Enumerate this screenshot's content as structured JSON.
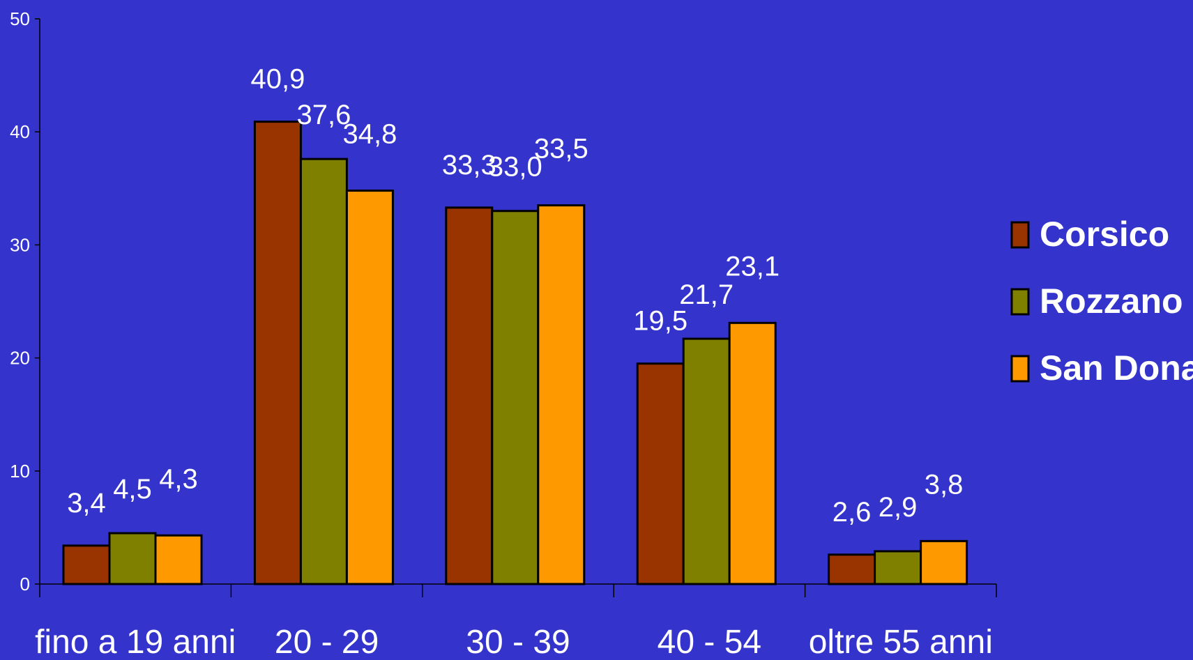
{
  "colors": {
    "background": "#3434cc",
    "axis": "#000000",
    "text": "#ffffff"
  },
  "chart_data": {
    "type": "bar",
    "categories": [
      "fino a 19 anni",
      "20 - 29",
      "30 - 39",
      "40 - 54",
      "oltre 55 anni"
    ],
    "series": [
      {
        "name": "Corsico",
        "color": "#993300",
        "values": [
          3.4,
          40.9,
          33.3,
          19.5,
          2.6
        ],
        "labels": [
          "3,4",
          "40,9",
          "33,3",
          "19,5",
          "2,6"
        ]
      },
      {
        "name": "Rozzano",
        "color": "#808000",
        "values": [
          4.5,
          37.6,
          33.0,
          21.7,
          2.9
        ],
        "labels": [
          "4,5",
          "37,6",
          "33,0",
          "21,7",
          "2,9"
        ]
      },
      {
        "name": "San Donato",
        "color": "#ff9900",
        "values": [
          4.3,
          34.8,
          33.5,
          23.1,
          3.8
        ],
        "labels": [
          "4,3",
          "34,8",
          "33,5",
          "23,1",
          "3,8"
        ]
      }
    ],
    "yticks": [
      "0",
      "10",
      "20",
      "30",
      "40",
      "50"
    ],
    "ylim": [
      0,
      50
    ],
    "grid": false,
    "legend_position": "right"
  }
}
